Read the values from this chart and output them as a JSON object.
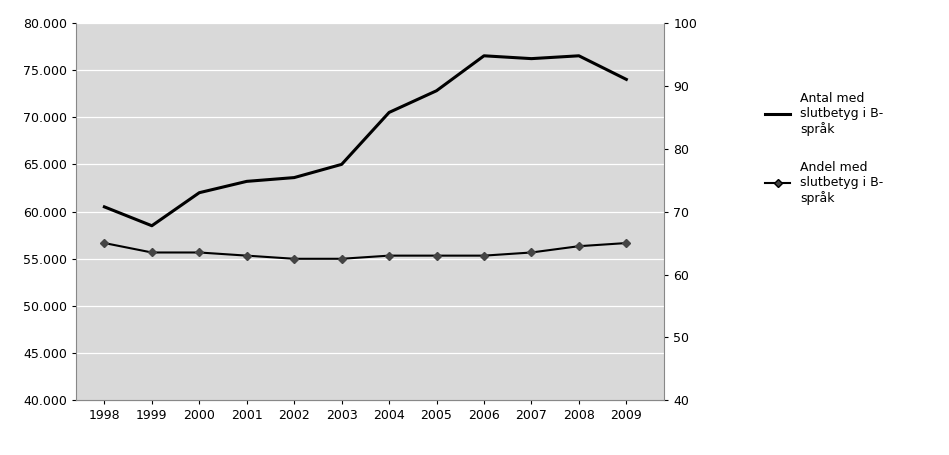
{
  "years": [
    1998,
    1999,
    2000,
    2001,
    2002,
    2003,
    2004,
    2005,
    2006,
    2007,
    2008,
    2009
  ],
  "antal": [
    60500,
    58500,
    62000,
    63200,
    63600,
    65000,
    70500,
    72800,
    76500,
    76200,
    76500,
    74000
  ],
  "andel_right": [
    65.0,
    63.5,
    63.5,
    63.0,
    62.5,
    62.5,
    63.0,
    63.0,
    63.0,
    63.5,
    64.5,
    65.0
  ],
  "ylim_left": [
    40000,
    80000
  ],
  "ylim_right": [
    40,
    100
  ],
  "yticks_left": [
    40000,
    45000,
    50000,
    55000,
    60000,
    65000,
    70000,
    75000,
    80000
  ],
  "yticks_right": [
    40,
    50,
    60,
    70,
    80,
    90,
    100
  ],
  "legend1": "Antal med\nslutbetyg i B-\nspråk",
  "legend2": "Andel med\nslutbetyg i B-\nspråk",
  "bg_color": "#d9d9d9",
  "line1_color": "#000000",
  "line2_color": "#000000",
  "fig_bg": "#ffffff",
  "xlim": [
    1997.4,
    2009.8
  ]
}
